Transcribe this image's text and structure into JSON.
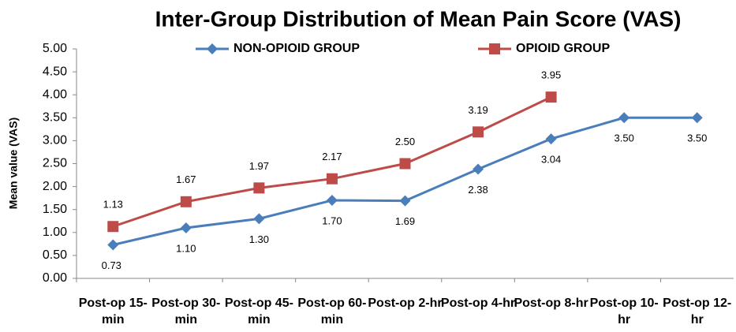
{
  "chart_data": {
    "type": "line",
    "title": "Inter-Group Distribution of Mean Pain Score (VAS)",
    "y_label": "Mean value (VAS)",
    "categories": [
      "Post-op 15-min",
      "Post-op 30-min",
      "Post-op 45-min",
      "Post-op 60-min",
      "Post-op 2-hr",
      "Post-op 4-hr",
      "Post-op 8-hr",
      "Post-op 10-hr",
      "Post-op 12-hr"
    ],
    "series": [
      {
        "name": "NON-OPIOID GROUP",
        "color": "#4a7ebb",
        "marker": "diamond",
        "values": [
          0.73,
          1.1,
          1.3,
          1.7,
          1.69,
          2.38,
          3.04,
          3.5,
          3.5
        ],
        "value_labels": [
          "0.73",
          "1.10",
          "1.30",
          "1.70",
          "1.69",
          "2.38",
          "3.04",
          "3.50",
          "3.50"
        ]
      },
      {
        "name": "OPIOID GROUP",
        "color": "#be4b48",
        "marker": "square",
        "values": [
          1.13,
          1.67,
          1.97,
          2.17,
          2.5,
          3.19,
          3.95,
          null,
          null
        ],
        "value_labels": [
          "1.13",
          "1.67",
          "1.97",
          "2.17",
          "2.50",
          "3.19",
          "3.95",
          null,
          null
        ]
      }
    ],
    "ylim": [
      0,
      5
    ],
    "yticks": [
      {
        "value": 0,
        "label": "0.00"
      },
      {
        "value": 0.5,
        "label": "0.50"
      },
      {
        "value": 1,
        "label": "1.00"
      },
      {
        "value": 1.5,
        "label": "1.50"
      },
      {
        "value": 2,
        "label": "2.00"
      },
      {
        "value": 2.5,
        "label": "2.50"
      },
      {
        "value": 3,
        "label": "3.00"
      },
      {
        "value": 3.5,
        "label": "3.50"
      },
      {
        "value": 4,
        "label": "4.00"
      },
      {
        "value": 4.5,
        "label": "4.50"
      },
      {
        "value": 5,
        "label": "5.00"
      }
    ],
    "grid": false,
    "legend": "top"
  }
}
